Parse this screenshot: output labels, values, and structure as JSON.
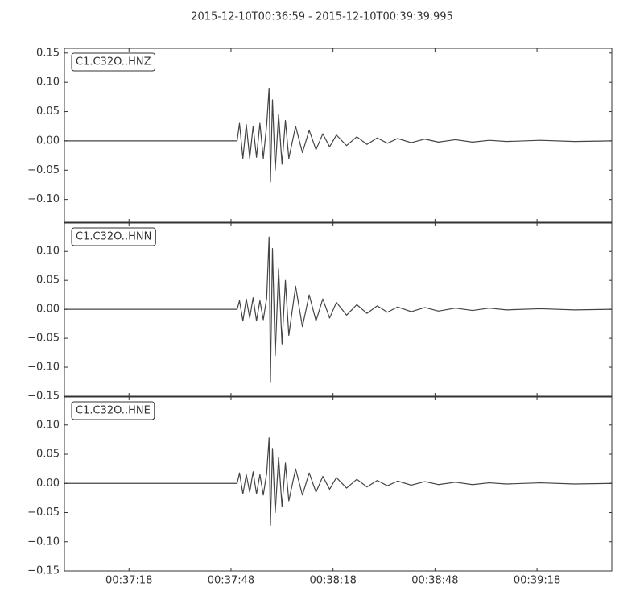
{
  "title": "2015-12-10T00:36:59  -  2015-12-10T00:39:39.995",
  "chart_data": [
    {
      "type": "line",
      "label": "C1.C32O..HNZ",
      "color": "#444444",
      "x": [
        0,
        50.8,
        51.5,
        52.5,
        53.5,
        54.5,
        55.5,
        56.5,
        57.5,
        58.5,
        59.5,
        60.2,
        60.6,
        61.2,
        62,
        63,
        64,
        65,
        66,
        68,
        70,
        72,
        74,
        76,
        78,
        80,
        83,
        86,
        89,
        92,
        95,
        98,
        102,
        106,
        110,
        115,
        120,
        125,
        130,
        140,
        150,
        161
      ],
      "values": [
        0,
        0,
        0.03,
        -0.03,
        0.028,
        -0.03,
        0.025,
        -0.028,
        0.03,
        -0.03,
        0.028,
        0.09,
        -0.07,
        0.07,
        -0.05,
        0.045,
        -0.04,
        0.035,
        -0.03,
        0.025,
        -0.02,
        0.018,
        -0.015,
        0.012,
        -0.01,
        0.01,
        -0.008,
        0.007,
        -0.006,
        0.005,
        -0.004,
        0.004,
        -0.003,
        0.003,
        -0.002,
        0.002,
        -0.002,
        0.001,
        -0.001,
        0.001,
        -0.001,
        0
      ],
      "xlim": [
        0,
        160.995
      ],
      "ylim": [
        -0.139,
        0.158
      ],
      "yticks": [
        {
          "value": -0.1,
          "label": "−0.10"
        },
        {
          "value": -0.05,
          "label": "−0.05"
        },
        {
          "value": 0,
          "label": "0.00"
        },
        {
          "value": 0.05,
          "label": "0.05"
        },
        {
          "value": 0.1,
          "label": "0.10"
        },
        {
          "value": 0.15,
          "label": "0.15"
        }
      ]
    },
    {
      "type": "line",
      "label": "C1.C32O..HNN",
      "color": "#444444",
      "x": [
        0,
        50.8,
        51.5,
        52.5,
        53.5,
        54.5,
        55.5,
        56.5,
        57.5,
        58.5,
        59.5,
        60.2,
        60.6,
        61.2,
        62,
        63,
        64,
        65,
        66,
        68,
        70,
        72,
        74,
        76,
        78,
        80,
        83,
        86,
        89,
        92,
        95,
        98,
        102,
        106,
        110,
        115,
        120,
        125,
        130,
        140,
        150,
        161
      ],
      "values": [
        0,
        0,
        0.015,
        -0.02,
        0.018,
        -0.015,
        0.02,
        -0.02,
        0.015,
        -0.018,
        0.02,
        0.125,
        -0.125,
        0.105,
        -0.08,
        0.07,
        -0.06,
        0.05,
        -0.045,
        0.04,
        -0.03,
        0.025,
        -0.02,
        0.018,
        -0.015,
        0.012,
        -0.01,
        0.008,
        -0.007,
        0.006,
        -0.005,
        0.004,
        -0.004,
        0.003,
        -0.003,
        0.002,
        -0.002,
        0.002,
        -0.001,
        0.001,
        -0.001,
        0
      ],
      "xlim": [
        0,
        160.995
      ],
      "ylim": [
        -0.15,
        0.149
      ],
      "yticks": [
        {
          "value": -0.15,
          "label": "−0.15"
        },
        {
          "value": -0.1,
          "label": "−0.10"
        },
        {
          "value": -0.05,
          "label": "−0.05"
        },
        {
          "value": 0,
          "label": "0.00"
        },
        {
          "value": 0.05,
          "label": "0.05"
        },
        {
          "value": 0.1,
          "label": "0.10"
        }
      ]
    },
    {
      "type": "line",
      "label": "C1.C32O..HNE",
      "color": "#444444",
      "x": [
        0,
        50.8,
        51.5,
        52.5,
        53.5,
        54.5,
        55.5,
        56.5,
        57.5,
        58.5,
        59.5,
        60.2,
        60.6,
        61.2,
        62,
        63,
        64,
        65,
        66,
        68,
        70,
        72,
        74,
        76,
        78,
        80,
        83,
        86,
        89,
        92,
        95,
        98,
        102,
        106,
        110,
        115,
        120,
        125,
        130,
        140,
        150,
        161
      ],
      "values": [
        0,
        0,
        0.018,
        -0.018,
        0.015,
        -0.015,
        0.02,
        -0.018,
        0.015,
        -0.02,
        0.018,
        0.078,
        -0.072,
        0.06,
        -0.05,
        0.045,
        -0.04,
        0.035,
        -0.03,
        0.025,
        -0.02,
        0.018,
        -0.015,
        0.012,
        -0.01,
        0.01,
        -0.008,
        0.007,
        -0.006,
        0.005,
        -0.004,
        0.004,
        -0.003,
        0.003,
        -0.002,
        0.002,
        -0.002,
        0.001,
        -0.001,
        0.001,
        -0.001,
        0
      ],
      "xlim": [
        0,
        160.995
      ],
      "ylim": [
        -0.15,
        0.148
      ],
      "yticks": [
        {
          "value": -0.15,
          "label": "−0.15"
        },
        {
          "value": -0.1,
          "label": "−0.10"
        },
        {
          "value": -0.05,
          "label": "−0.05"
        },
        {
          "value": 0,
          "label": "0.00"
        },
        {
          "value": 0.05,
          "label": "0.05"
        },
        {
          "value": 0.1,
          "label": "0.10"
        }
      ],
      "xticks": [
        {
          "value": 19,
          "label": "00:37:18"
        },
        {
          "value": 49,
          "label": "00:37:48"
        },
        {
          "value": 79,
          "label": "00:38:18"
        },
        {
          "value": 109,
          "label": "00:38:48"
        },
        {
          "value": 139,
          "label": "00:39:18"
        }
      ]
    }
  ]
}
